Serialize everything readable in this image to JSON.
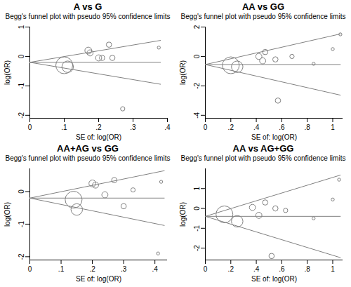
{
  "chart_data": [
    {
      "type": "scatter",
      "title": "A vs G",
      "subtitle": "Begg's funnel plot with pseudo 95% confidence limits",
      "x_label": "SE of: log(OR)",
      "y_label": "log(OR)",
      "color": "#808080",
      "marker": "hollow circle",
      "x": [
        0.1,
        0.11,
        0.17,
        0.175,
        0.2,
        0.21,
        0.23,
        0.24,
        0.27,
        0.375
      ],
      "y": [
        -0.3,
        -0.35,
        0.2,
        0.12,
        -0.05,
        -0.05,
        0.4,
        -0.05,
        -1.78,
        0.3
      ],
      "sizes": [
        30,
        14,
        5,
        4,
        4,
        3,
        3,
        3,
        2,
        1
      ],
      "pooled": -0.2,
      "limits": {
        "x": [
          0,
          0.38
        ],
        "upper": [
          -0.2,
          0.545
        ],
        "lower": [
          -0.2,
          -0.945
        ]
      },
      "xlim": [
        0,
        0.4
      ],
      "ylim": [
        -2.1,
        1.0
      ],
      "xticks": [
        0,
        {
          "value": 0.1,
          "label": ".1"
        },
        {
          "value": 0.2,
          "label": ".2"
        },
        {
          "value": 0.3,
          "label": ".3"
        },
        {
          "value": 0.4,
          "label": ".4"
        }
      ],
      "yticks": [
        -2,
        -1,
        0,
        1
      ]
    },
    {
      "type": "scatter",
      "title": "AA vs GG",
      "subtitle": "Begg's funnel plot with pseudo 95% confidence limits",
      "x_label": "SE of: log(OR)",
      "y_label": "log(OR)",
      "color": "#808080",
      "marker": "hollow circle",
      "x": [
        0.2,
        0.25,
        0.42,
        0.45,
        0.47,
        0.55,
        0.57,
        0.68,
        0.85,
        1.0,
        1.06
      ],
      "y": [
        -0.6,
        -0.7,
        0.0,
        -0.3,
        0.3,
        -0.2,
        -3.0,
        0.0,
        -0.5,
        0.5,
        1.5
      ],
      "sizes": [
        30,
        14,
        4,
        4,
        3,
        3,
        3,
        2,
        1,
        1,
        1
      ],
      "pooled": -0.55,
      "limits": {
        "x": [
          0,
          1.06
        ],
        "upper": [
          -0.55,
          1.53
        ],
        "lower": [
          -0.55,
          -2.63
        ]
      },
      "xlim": [
        0,
        1.08
      ],
      "ylim": [
        -4.2,
        2.0
      ],
      "xticks": [
        0,
        {
          "value": 0.2,
          "label": ".2"
        },
        {
          "value": 0.4,
          "label": ".4"
        },
        {
          "value": 0.6,
          "label": ".6"
        },
        {
          "value": 0.8,
          "label": ".8"
        },
        1
      ],
      "yticks": [
        -4,
        -2,
        0,
        2
      ]
    },
    {
      "type": "scatter",
      "title": "AA+AG vs GG",
      "subtitle": "Begg's funnel plot with pseudo 95% confidence limits",
      "x_label": "SE of: log(OR)",
      "y_label": "log(OR)",
      "color": "#808080",
      "marker": "hollow circle",
      "x": [
        0.14,
        0.15,
        0.2,
        0.21,
        0.24,
        0.27,
        0.3,
        0.33,
        0.42,
        0.41
      ],
      "y": [
        -0.25,
        -0.55,
        0.25,
        0.2,
        -0.1,
        0.35,
        -0.45,
        0.05,
        0.3,
        -1.9
      ],
      "sizes": [
        30,
        14,
        5,
        4,
        4,
        3,
        3,
        2,
        1,
        1
      ],
      "pooled": -0.2,
      "limits": {
        "x": [
          0,
          0.43
        ],
        "upper": [
          -0.2,
          0.64
        ],
        "lower": [
          -0.2,
          -1.04
        ]
      },
      "xlim": [
        0,
        0.44
      ],
      "ylim": [
        -2.1,
        0.7
      ],
      "xticks": [
        0,
        {
          "value": 0.1,
          "label": ".1"
        },
        {
          "value": 0.2,
          "label": ".2"
        },
        {
          "value": 0.3,
          "label": ".3"
        },
        {
          "value": 0.4,
          "label": ".4"
        }
      ],
      "yticks": [
        -2,
        -1,
        0
      ]
    },
    {
      "type": "scatter",
      "title": "AA vs AG+GG",
      "subtitle": "Begg's funnel plot with pseudo 95% confidence limits",
      "x_label": "SE of: log(OR)",
      "y_label": "log(OR)",
      "color": "#808080",
      "marker": "hollow circle",
      "x": [
        0.15,
        0.25,
        0.37,
        0.42,
        0.47,
        0.52,
        0.55,
        0.63,
        0.85,
        1.0,
        1.05
      ],
      "y": [
        -0.3,
        -0.65,
        0.05,
        -0.35,
        0.3,
        -2.4,
        0.0,
        -0.1,
        -0.5,
        0.45,
        1.45
      ],
      "sizes": [
        30,
        14,
        4,
        4,
        3,
        3,
        3,
        2,
        1,
        1,
        1
      ],
      "pooled": -0.4,
      "limits": {
        "x": [
          0,
          1.06
        ],
        "upper": [
          -0.4,
          1.68
        ],
        "lower": [
          -0.4,
          -2.48
        ]
      },
      "xlim": [
        0,
        1.08
      ],
      "ylim": [
        -2.6,
        2.0
      ],
      "xticks": [
        0,
        {
          "value": 0.2,
          "label": ".2"
        },
        {
          "value": 0.4,
          "label": ".4"
        },
        {
          "value": 0.6,
          "label": ".6"
        },
        {
          "value": 0.8,
          "label": ".8"
        },
        1
      ],
      "yticks": [
        -2,
        -1,
        0,
        1
      ]
    }
  ]
}
